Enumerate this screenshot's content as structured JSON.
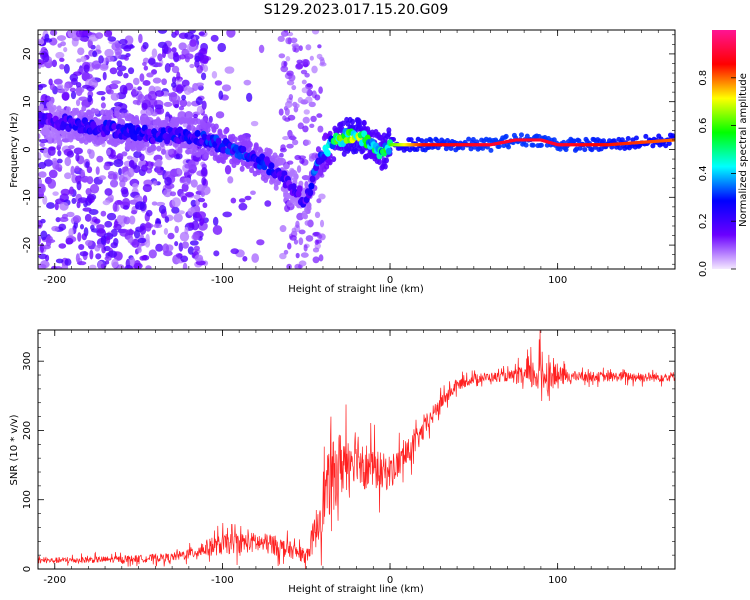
{
  "title": "S129.2023.017.15.20.G09",
  "chart_data": [
    {
      "type": "heatmap",
      "xlabel": "Height of straight line (km)",
      "ylabel": "Frequency (Hz)",
      "xlim": [
        -210,
        170
      ],
      "ylim": [
        -25,
        25
      ],
      "x_ticks": [
        -200,
        -100,
        0,
        100
      ],
      "y_ticks": [
        -20,
        -10,
        0,
        10,
        20
      ],
      "colorbar": {
        "label": "Normalized spectral amplitude",
        "range": [
          0,
          1
        ],
        "ticks": [
          0.0,
          0.2,
          0.4,
          0.6,
          0.8
        ],
        "colors": [
          "#f4e9ff",
          "#6a00ff",
          "#0000ff",
          "#00ffff",
          "#00ff00",
          "#ffff00",
          "#ff0000",
          "#ff1493"
        ]
      },
      "ridge": {
        "x": [
          -200,
          -180,
          -160,
          -140,
          -120,
          -100,
          -80,
          -70,
          -60,
          -50,
          -45,
          -40,
          -35,
          -30,
          -25,
          -20,
          -15,
          -10,
          -5,
          0,
          20,
          60,
          75,
          90,
          100,
          130,
          170
        ],
        "frequency": [
          6,
          5,
          4,
          3,
          3,
          1,
          -2,
          -4,
          -7,
          -11,
          -5,
          -1,
          1,
          2,
          3,
          3,
          2,
          1,
          -1,
          1,
          1,
          1,
          2,
          2,
          1,
          1,
          2
        ],
        "amplitude": [
          0.2,
          0.25,
          0.25,
          0.25,
          0.25,
          0.3,
          0.3,
          0.25,
          0.2,
          0.2,
          0.3,
          0.35,
          0.45,
          0.55,
          0.6,
          0.65,
          0.55,
          0.5,
          0.5,
          0.6,
          0.85,
          0.9,
          0.9,
          0.9,
          0.9,
          0.85,
          0.8
        ]
      }
    },
    {
      "type": "line",
      "xlabel": "Height of straight line (km)",
      "ylabel": "SNR (10 * v/v)",
      "xlim": [
        -210,
        170
      ],
      "ylim": [
        0,
        345
      ],
      "x_ticks": [
        -200,
        -100,
        0,
        100
      ],
      "y_ticks": [
        0,
        100,
        200,
        300
      ],
      "color": "#ff2020",
      "envelope": {
        "x": [
          -210,
          -160,
          -130,
          -120,
          -110,
          -100,
          -90,
          -80,
          -70,
          -60,
          -50,
          -45,
          -40,
          -35,
          -30,
          -25,
          -20,
          -15,
          -10,
          -5,
          0,
          10,
          20,
          30,
          40,
          50,
          60,
          70,
          80,
          90,
          100,
          110,
          120,
          130,
          140,
          150,
          160,
          170
        ],
        "mean": [
          12,
          14,
          17,
          22,
          30,
          35,
          38,
          38,
          35,
          28,
          18,
          50,
          100,
          130,
          150,
          160,
          170,
          150,
          145,
          140,
          140,
          165,
          200,
          240,
          265,
          275,
          277,
          278,
          278,
          282,
          278,
          278,
          278,
          277,
          278,
          277,
          277,
          278
        ],
        "noise": [
          4,
          5,
          6,
          8,
          12,
          15,
          15,
          15,
          15,
          12,
          10,
          25,
          45,
          50,
          50,
          45,
          40,
          35,
          30,
          28,
          25,
          20,
          15,
          12,
          8,
          7,
          7,
          7,
          15,
          30,
          15,
          7,
          7,
          7,
          7,
          7,
          7,
          7
        ]
      }
    }
  ]
}
